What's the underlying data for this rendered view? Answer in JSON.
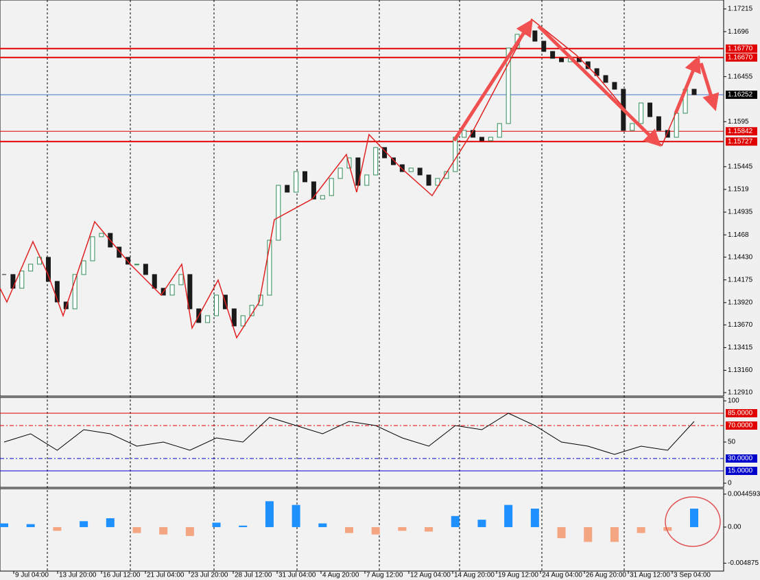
{
  "chart_data": [
    {
      "type": "candlestick",
      "values": [
        1.14235,
        1.14081,
        1.14274,
        1.14351,
        1.14428,
        1.14158,
        1.13927,
        1.1385,
        1.14235,
        1.14389,
        1.14659,
        1.14697,
        1.14543,
        1.14428,
        1.14351,
        1.14351,
        1.14235,
        1.14081,
        1.14004,
        1.1412,
        1.14235,
        1.1385,
        1.13696,
        1.13773,
        1.14004,
        1.1385,
        1.13658,
        1.13773,
        1.13889,
        1.14004,
        1.1462,
        1.15236,
        1.15159,
        1.1539,
        1.15275,
        1.15082,
        1.15121,
        1.15313,
        1.15429,
        1.15544,
        1.15236,
        1.15352,
        1.1566,
        1.15544,
        1.15467,
        1.1539,
        1.15429,
        1.15352,
        1.15236,
        1.15313,
        1.1539,
        1.15775,
        1.15852,
        1.15775,
        1.15737,
        1.15775,
        1.15929,
        1.16776,
        1.1693,
        1.16969,
        1.16853,
        1.16738,
        1.16661,
        1.16622,
        1.16661,
        1.16622,
        1.16545,
        1.16468,
        1.16391,
        1.16314,
        1.15852,
        1.15929,
        1.1616,
        1.16006,
        1.15852,
        1.15775,
        1.16045,
        1.16314,
        1.16252
      ],
      "color_up": "#2e8b57",
      "color_down": "#1a1a1a",
      "ylim": [
        1.1291,
        1.17215
      ],
      "yticks": [
        1.17215,
        1.1696,
        1.16455,
        1.1595,
        1.15445,
        1.1519,
        1.14935,
        1.1468,
        {
          "value": 1.1443,
          "label": "1.14430"
        },
        1.14175,
        {
          "value": 1.1392,
          "label": "1.13920"
        },
        {
          "value": 1.1367,
          "label": "1.13670"
        },
        1.13415,
        {
          "value": 1.1316,
          "label": "1.13160"
        },
        {
          "value": 1.1291,
          "label": "1.12910"
        }
      ],
      "levels": [
        {
          "value": 1.1677,
          "label": "1.16770",
          "color": "#e00000",
          "box": "#e00000"
        },
        {
          "value": 1.1667,
          "label": "1.16670",
          "color": "#e00000",
          "box": "#e00000"
        },
        {
          "value": 1.16252,
          "label": "1.16252",
          "color": "#4070c8",
          "box": "#000000"
        },
        {
          "value": 1.15842,
          "label": "1.15842",
          "color": "#e00000",
          "box": "#e00000"
        },
        {
          "value": 1.15727,
          "label": "1.15727",
          "color": "#e00000",
          "box": "#e00000"
        }
      ],
      "x_labels": [
        "9 Jul 04:00",
        "13 Jul 20:00",
        "16 Jul 12:00",
        "21 Jul 04:00",
        "23 Jul 20:00",
        "28 Jul 12:00",
        "31 Jul 04:00",
        "4 Aug 20:00",
        "7 Aug 12:00",
        "12 Aug 04:00",
        "14 Aug 20:00",
        "19 Aug 12:00",
        "24 Aug 04:00",
        "26 Aug 20:00",
        "31 Aug 12:00",
        "3 Sep 04:00"
      ]
    },
    {
      "type": "line",
      "values": [
        50,
        60,
        40,
        65,
        60,
        45,
        50,
        40,
        55,
        50,
        80,
        70,
        60,
        75,
        70,
        55,
        45,
        70,
        65,
        85,
        70,
        50,
        45,
        35,
        45,
        40,
        75
      ],
      "color": "#000000",
      "ylim": [
        0,
        100
      ],
      "yticks": [
        100,
        50,
        0
      ],
      "levels": [
        {
          "value": 85,
          "label": "85.0000",
          "color": "#e00000",
          "box": "#e00000"
        },
        {
          "value": 70,
          "label": "70.0000",
          "color": "#e00000",
          "box": "#e00000"
        },
        {
          "value": 30,
          "label": "30.0000",
          "color": "#0000cc",
          "box": "#0000cc"
        },
        {
          "value": 15,
          "label": "15.0000",
          "color": "#0000cc",
          "box": "#0000cc"
        }
      ]
    },
    {
      "type": "bar",
      "values": [
        0.0005,
        0.0004,
        -0.0005,
        0.0008,
        0.0012,
        -0.0008,
        -0.001,
        -0.0012,
        0.0006,
        0.0002,
        0.0035,
        0.003,
        0.0005,
        -0.0008,
        -0.001,
        -0.0005,
        -0.0006,
        0.0015,
        0.001,
        0.003,
        0.0025,
        -0.0015,
        -0.002,
        -0.002,
        -0.0008,
        -0.0005,
        0.0025
      ],
      "color_up": "#1e90ff",
      "color_down": "#f4a582",
      "ylim": [
        -0.00576,
        0.0051
      ],
      "yticks": [
        0.0044593,
        {
          "value": 0,
          "label": "0.00"
        },
        -0.004875
      ]
    }
  ]
}
